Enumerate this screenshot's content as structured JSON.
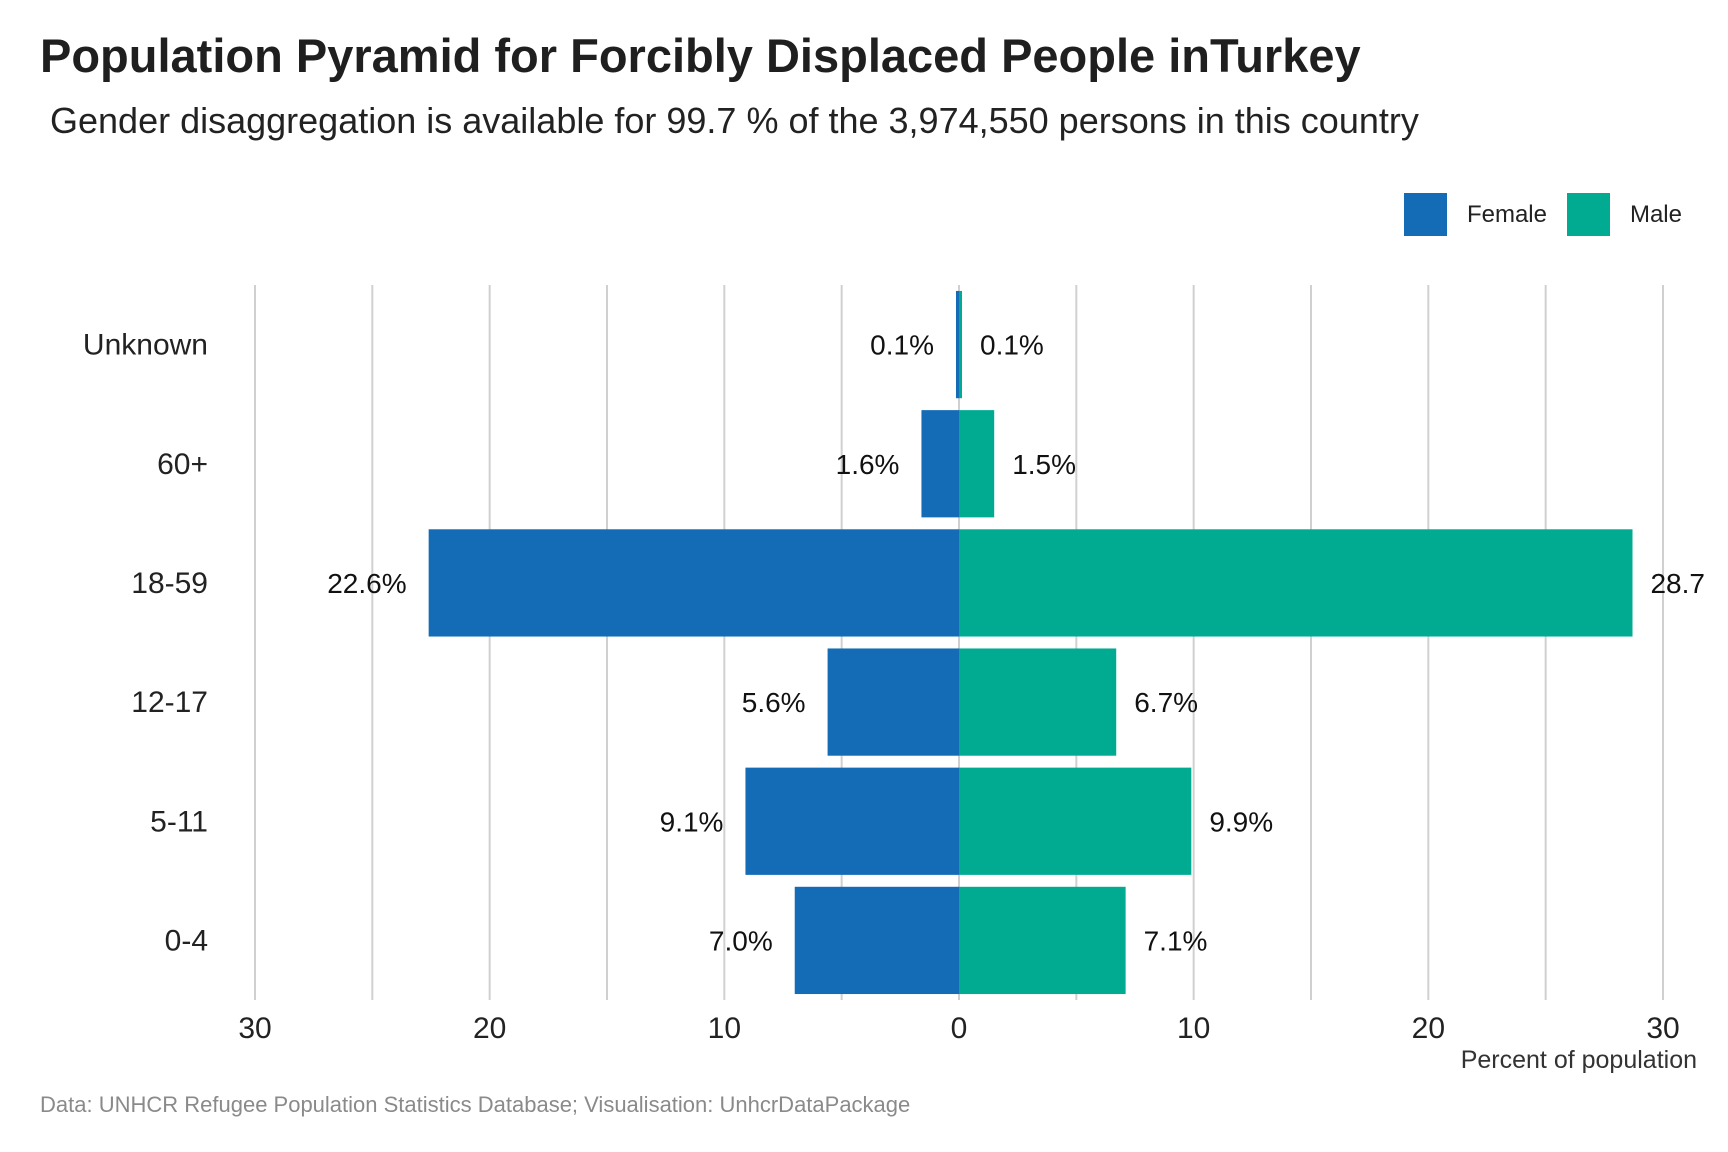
{
  "chart_data": {
    "type": "bar",
    "orientation": "horizontal-diverging",
    "title": "Population Pyramid for Forcibly Displaced People inTurkey",
    "subtitle": "Gender disaggregation is available for 99.7 % of the 3,974,550 persons in this country",
    "xlabel": "Percent of population",
    "caption": "Data: UNHCR Refugee Population Statistics Database; Visualisation: UnhcrDataPackage",
    "categories": [
      "Unknown",
      "60+",
      "18-59",
      "12-17",
      "5-11",
      "0-4"
    ],
    "xlim": [
      -30,
      30
    ],
    "xticks": [
      -30,
      -20,
      -10,
      0,
      10,
      20,
      30
    ],
    "xtick_labels": [
      "30",
      "20",
      "10",
      "0",
      "10",
      "20",
      "30"
    ],
    "grid": true,
    "legend_position": "top-right",
    "series": [
      {
        "name": "Female",
        "color": "#136CB5",
        "side": "left",
        "values": [
          0.1,
          1.6,
          22.6,
          5.6,
          9.1,
          7.0
        ],
        "labels": [
          "0.1%",
          "1.6%",
          "22.6%",
          "5.6%",
          "9.1%",
          "7.0%"
        ]
      },
      {
        "name": "Male",
        "color": "#00AB92",
        "side": "right",
        "values": [
          0.1,
          1.5,
          28.7,
          6.7,
          9.9,
          7.1
        ],
        "labels": [
          "0.1%",
          "1.5%",
          "28.7",
          "6.7%",
          "9.9%",
          "7.1%"
        ]
      }
    ]
  }
}
